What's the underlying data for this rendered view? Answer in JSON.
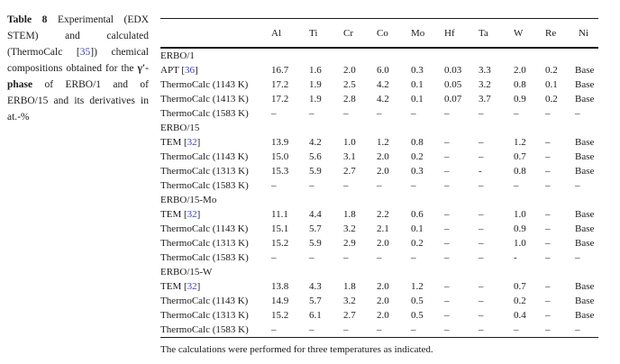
{
  "colors": {
    "citation_link": "#3a3fbf",
    "text": "#1b1b1b",
    "rule": "#1c1c1c"
  },
  "caption": {
    "segments": [
      {
        "text": "Table 8",
        "style": "bold"
      },
      {
        "text": " Experimental (EDX STEM) and calculated (ThermoCalc [",
        "style": "normal"
      },
      {
        "text": "35",
        "style": "cite"
      },
      {
        "text": "]) chemical compositions obtained for the ",
        "style": "normal"
      },
      {
        "text": "γ′-phase",
        "style": "bold"
      },
      {
        "text": " of ERBO/1 and of ERBO/15 and its derivatives in at.-%",
        "style": "normal"
      }
    ]
  },
  "table": {
    "columns": [
      "Al",
      "Ti",
      "Cr",
      "Co",
      "Mo",
      "Hf",
      "Ta",
      "W",
      "Re",
      "Ni"
    ],
    "rows": [
      {
        "type": "section",
        "label": [
          {
            "text": "ERBO/1",
            "style": "normal"
          }
        ]
      },
      {
        "type": "data",
        "label": [
          {
            "text": "APT [",
            "style": "normal"
          },
          {
            "text": "36",
            "style": "cite"
          },
          {
            "text": "]",
            "style": "normal"
          }
        ],
        "values": [
          "16.7",
          "1.6",
          "2.0",
          "6.0",
          "0.3",
          "0.03",
          "3.3",
          "2.0",
          "0.2",
          "Base"
        ]
      },
      {
        "type": "data",
        "label": [
          {
            "text": "ThermoCalc (1143 K)",
            "style": "normal"
          }
        ],
        "values": [
          "17.2",
          "1.9",
          "2.5",
          "4.2",
          "0.1",
          "0.05",
          "3.2",
          "0.8",
          "0.1",
          "Base"
        ]
      },
      {
        "type": "data",
        "label": [
          {
            "text": "ThermoCalc (1413 K)",
            "style": "normal"
          }
        ],
        "values": [
          "17.2",
          "1.9",
          "2.8",
          "4.2",
          "0.1",
          "0.07",
          "3.7",
          "0.9",
          "0.2",
          "Base"
        ]
      },
      {
        "type": "data",
        "label": [
          {
            "text": "ThermoCalc (1583 K)",
            "style": "normal"
          }
        ],
        "values": [
          "–",
          "–",
          "–",
          "–",
          "–",
          "–",
          "–",
          "–",
          "–",
          "–"
        ]
      },
      {
        "type": "section",
        "label": [
          {
            "text": "ERBO/15",
            "style": "normal"
          }
        ]
      },
      {
        "type": "data",
        "label": [
          {
            "text": "TEM [",
            "style": "normal"
          },
          {
            "text": "32",
            "style": "cite"
          },
          {
            "text": "]",
            "style": "normal"
          }
        ],
        "values": [
          "13.9",
          "4.2",
          "1.0",
          "1.2",
          "0.8",
          "–",
          "–",
          "1.2",
          "–",
          "Base"
        ]
      },
      {
        "type": "data",
        "label": [
          {
            "text": "ThermoCalc (1143 K)",
            "style": "normal"
          }
        ],
        "values": [
          "15.0",
          "5.6",
          "3.1",
          "2.0",
          "0.2",
          "–",
          "–",
          "0.7",
          "–",
          "Base"
        ]
      },
      {
        "type": "data",
        "label": [
          {
            "text": "ThermoCalc (1313 K)",
            "style": "normal"
          }
        ],
        "values": [
          "15.3",
          "5.9",
          "2.7",
          "2.0",
          "0.3",
          "–",
          "-",
          "0.8",
          "–",
          "Base"
        ]
      },
      {
        "type": "data",
        "label": [
          {
            "text": "ThermoCalc (1583 K)",
            "style": "normal"
          }
        ],
        "values": [
          "–",
          "–",
          "–",
          "–",
          "–",
          "–",
          "–",
          "–",
          "–",
          "–"
        ]
      },
      {
        "type": "section",
        "label": [
          {
            "text": "ERBO/15-Mo",
            "style": "normal"
          }
        ]
      },
      {
        "type": "data",
        "label": [
          {
            "text": "TEM [",
            "style": "normal"
          },
          {
            "text": "32",
            "style": "cite"
          },
          {
            "text": "]",
            "style": "normal"
          }
        ],
        "values": [
          "11.1",
          "4.4",
          "1.8",
          "2.2",
          "0.6",
          "–",
          "–",
          "1.0",
          "–",
          "Base"
        ]
      },
      {
        "type": "data",
        "label": [
          {
            "text": "ThermoCalc (1143 K)",
            "style": "normal"
          }
        ],
        "values": [
          "15.1",
          "5.7",
          "3.2",
          "2.1",
          "0.1",
          "–",
          "–",
          "0.9",
          "–",
          "Base"
        ]
      },
      {
        "type": "data",
        "label": [
          {
            "text": "ThermoCalc (1313 K)",
            "style": "normal"
          }
        ],
        "values": [
          "15.2",
          "5.9",
          "2.9",
          "2.0",
          "0.2",
          "–",
          "–",
          "1.0",
          "–",
          "Base"
        ]
      },
      {
        "type": "data",
        "label": [
          {
            "text": "ThermoCalc (1583 K)",
            "style": "normal"
          }
        ],
        "values": [
          "–",
          "–",
          "–",
          "–",
          "–",
          "–",
          "–",
          "-",
          "–",
          "–"
        ]
      },
      {
        "type": "section",
        "label": [
          {
            "text": "ERBO/15-W",
            "style": "normal"
          }
        ]
      },
      {
        "type": "data",
        "label": [
          {
            "text": "TEM [",
            "style": "normal"
          },
          {
            "text": "32",
            "style": "cite"
          },
          {
            "text": "]",
            "style": "normal"
          }
        ],
        "values": [
          "13.8",
          "4.3",
          "1.8",
          "2.0",
          "1.2",
          "–",
          "–",
          "0.7",
          "–",
          "Base"
        ]
      },
      {
        "type": "data",
        "label": [
          {
            "text": "ThermoCalc (1143 K)",
            "style": "normal"
          }
        ],
        "values": [
          "14.9",
          "5.7",
          "3.2",
          "2.0",
          "0.5",
          "–",
          "–",
          "0.2",
          "–",
          "Base"
        ]
      },
      {
        "type": "data",
        "label": [
          {
            "text": "ThermoCalc (1313 K)",
            "style": "normal"
          }
        ],
        "values": [
          "15.2",
          "6.1",
          "2.7",
          "2.0",
          "0.5",
          "–",
          "–",
          "0.4",
          "–",
          "Base"
        ]
      },
      {
        "type": "data",
        "label": [
          {
            "text": "ThermoCalc (1583 K)",
            "style": "normal"
          }
        ],
        "values": [
          "–",
          "–",
          "–",
          "–",
          "–",
          "–",
          "–",
          "–",
          "–",
          "–"
        ]
      }
    ],
    "footnote": "The calculations were performed for three temperatures as indicated."
  },
  "chart_data": {
    "type": "table",
    "title": "Table 8 Experimental (EDX STEM) and calculated (ThermoCalc [35]) chemical compositions obtained for the γ′-phase of ERBO/1 and of ERBO/15 and its derivatives in at.-%",
    "columns": [
      "Al",
      "Ti",
      "Cr",
      "Co",
      "Mo",
      "Hf",
      "Ta",
      "W",
      "Re",
      "Ni"
    ]
  }
}
